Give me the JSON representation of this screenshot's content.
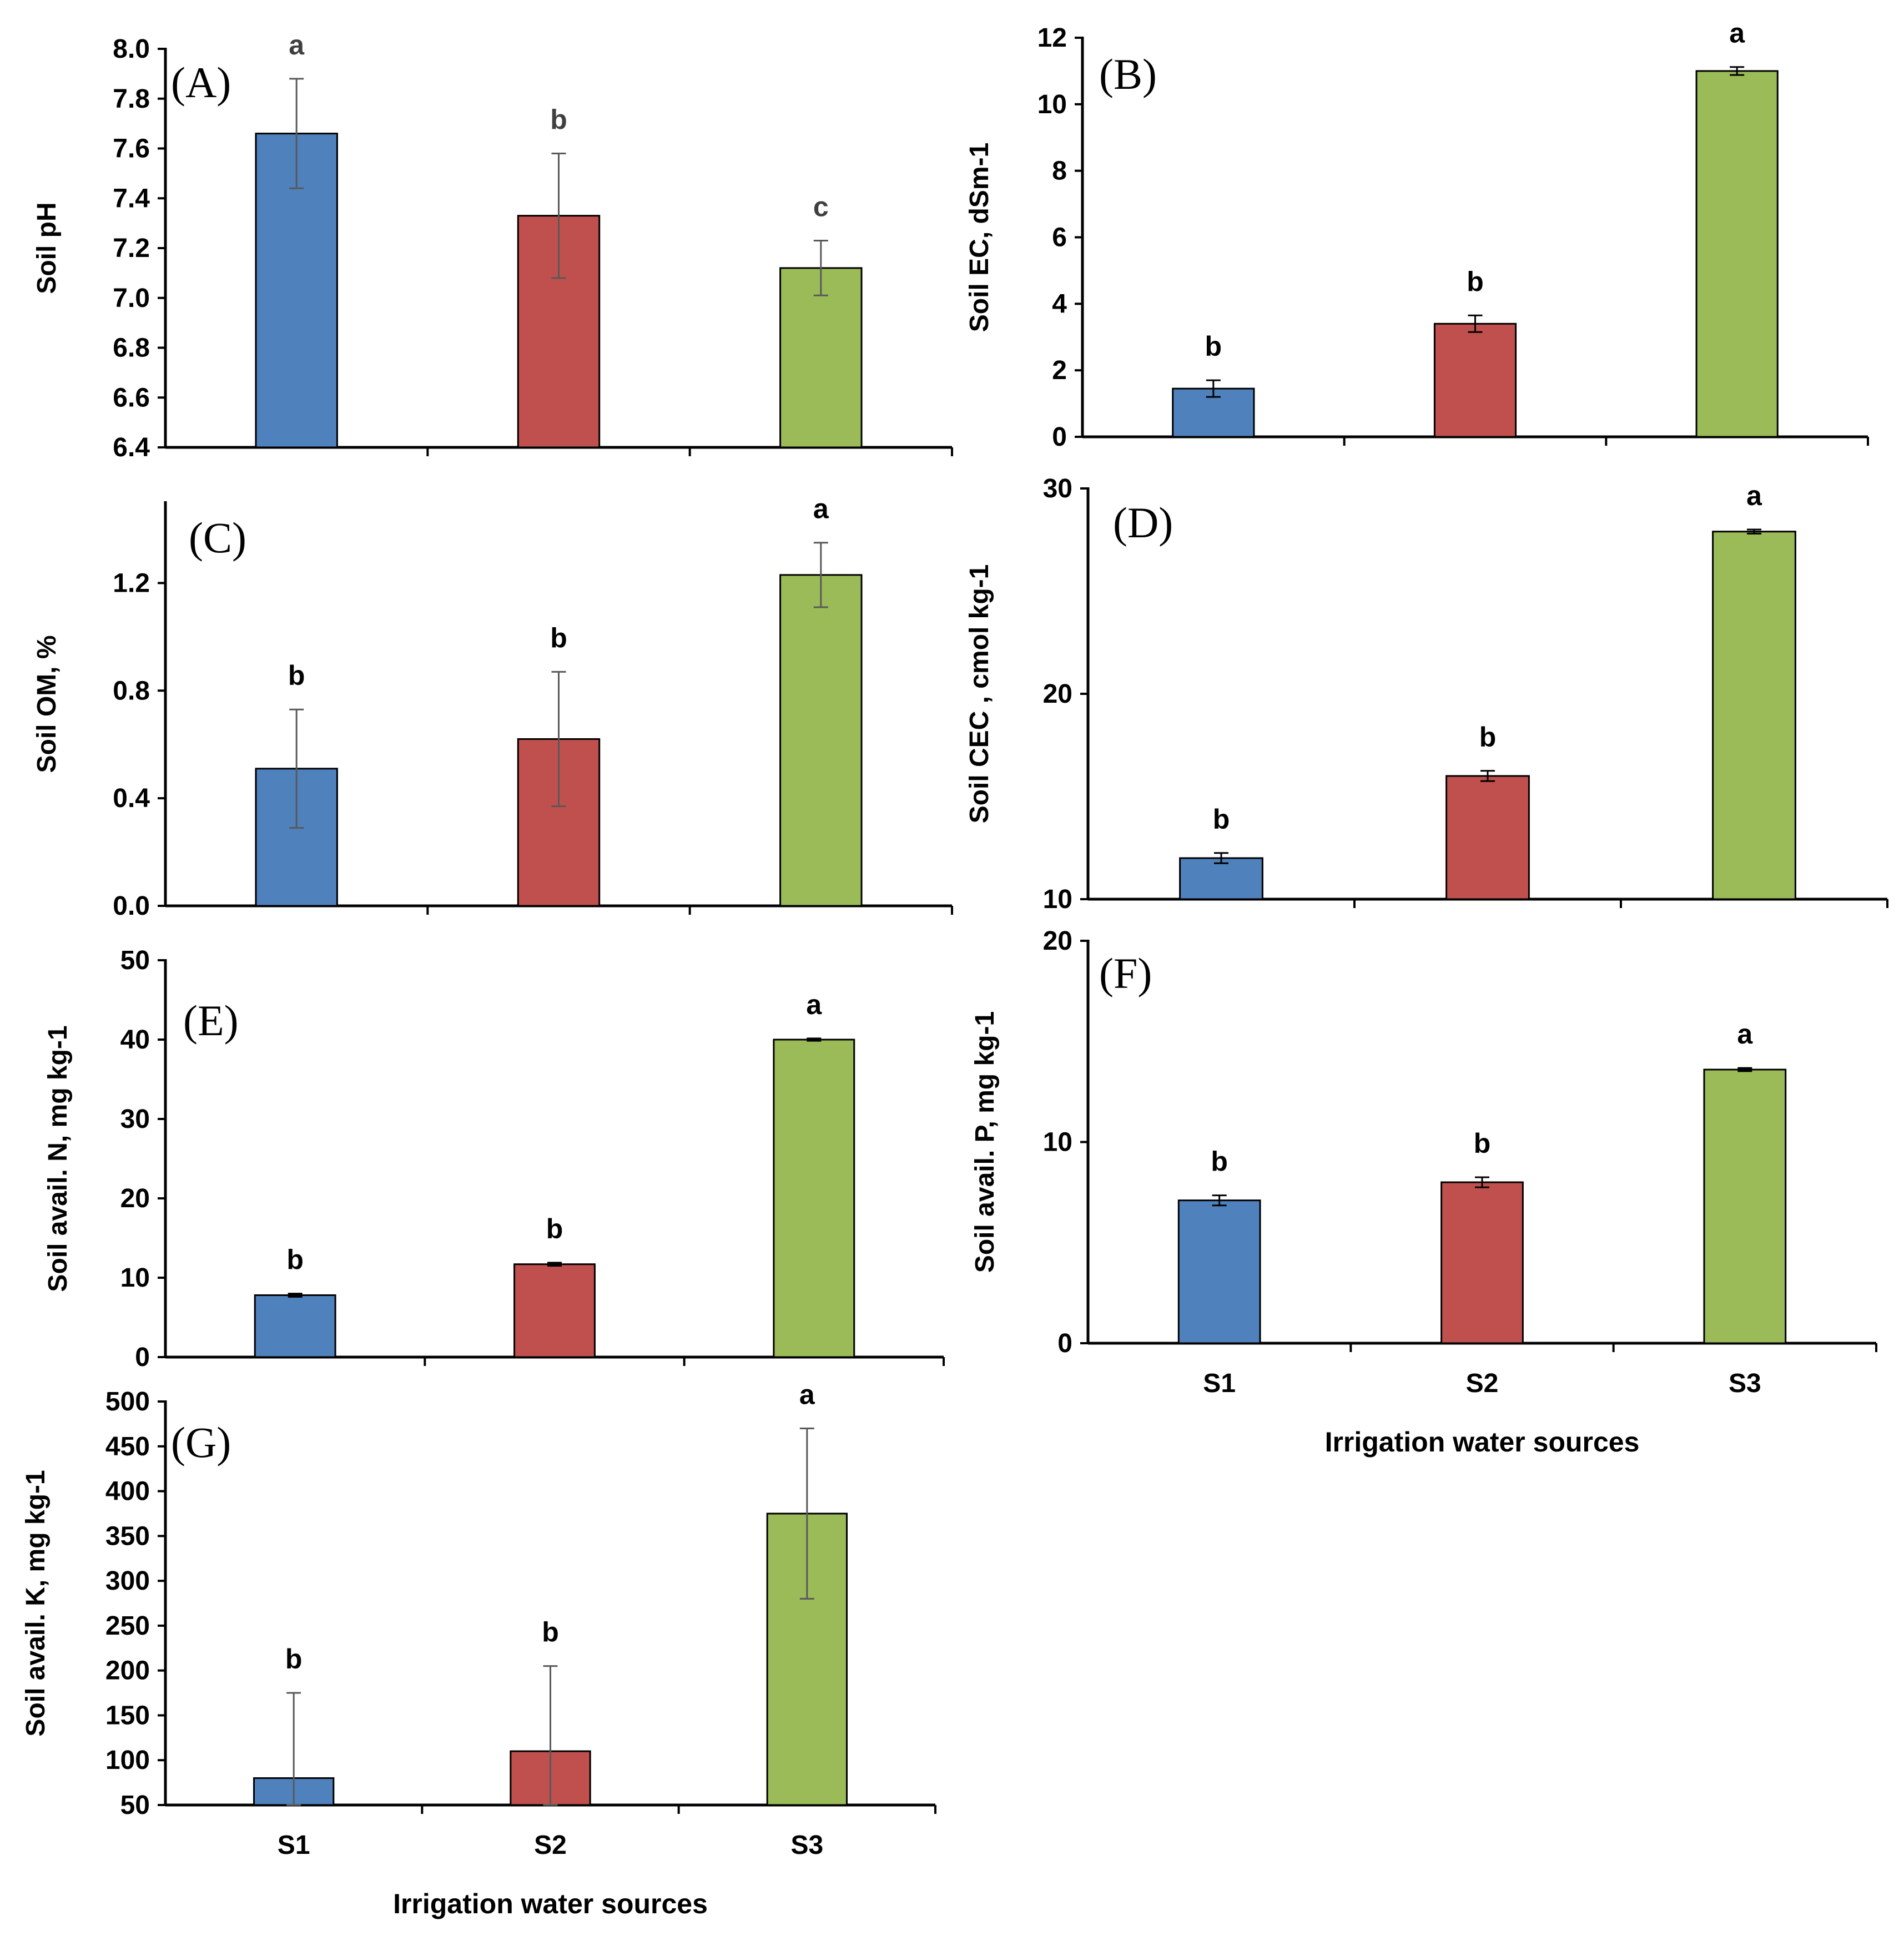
{
  "colors": {
    "S1": "#4F81BD",
    "S2": "#C0504D",
    "S3": "#9BBB59"
  },
  "chart_data": [
    {
      "panel": "(A)",
      "type": "bar",
      "categories": [
        "S1",
        "S2",
        "S3"
      ],
      "ylabel": "Soil pH",
      "xlabel": "",
      "ylim": [
        6.4,
        8.0
      ],
      "yticks": [
        "6.4",
        "6.6",
        "6.8",
        "7.0",
        "7.2",
        "7.4",
        "7.6",
        "7.8",
        "8.0"
      ],
      "show_categories": false,
      "values": [
        7.66,
        7.33,
        7.12
      ],
      "errors": [
        0.22,
        0.25,
        0.11
      ],
      "letters": [
        "a",
        "b",
        "c"
      ]
    },
    {
      "panel": "(B)",
      "type": "bar",
      "categories": [
        "S1",
        "S2",
        "S3"
      ],
      "ylabel": "Soil EC, dSm-1",
      "xlabel": "",
      "ylim": [
        0,
        12
      ],
      "yticks": [
        "0",
        "2",
        "4",
        "6",
        "8",
        "10",
        "12"
      ],
      "show_categories": false,
      "values": [
        1.45,
        3.4,
        11.0
      ],
      "errors": [
        0.25,
        0.25,
        0.12
      ],
      "letters": [
        "b",
        "b",
        "a"
      ]
    },
    {
      "panel": "(C)",
      "type": "bar",
      "categories": [
        "S1",
        "S2",
        "S3"
      ],
      "ylabel": "Soil OM, %",
      "xlabel": "",
      "ylim": [
        0,
        1.5
      ],
      "yticks": [
        "0.0",
        "0.4",
        "0.8",
        "1.2"
      ],
      "show_categories": false,
      "values": [
        0.51,
        0.62,
        1.23
      ],
      "errors": [
        0.22,
        0.25,
        0.12
      ],
      "letters": [
        "b",
        "b",
        "a"
      ]
    },
    {
      "panel": "(D)",
      "type": "bar",
      "categories": [
        "S1",
        "S2",
        "S3"
      ],
      "ylabel": "Soil CEC , cmol kg-1",
      "xlabel": "",
      "ylim": [
        10,
        30
      ],
      "yticks": [
        "10",
        "20",
        "30"
      ],
      "show_categories": false,
      "values": [
        12.0,
        16.0,
        27.9
      ],
      "errors": [
        0.25,
        0.25,
        0.1
      ],
      "letters": [
        "b",
        "b",
        "a"
      ]
    },
    {
      "panel": "(E)",
      "type": "bar",
      "categories": [
        "S1",
        "S2",
        "S3"
      ],
      "ylabel": "Soil avail. N, mg kg-1",
      "xlabel": "",
      "ylim": [
        0,
        50
      ],
      "yticks": [
        "0",
        "10",
        "20",
        "30",
        "40",
        "50"
      ],
      "show_categories": false,
      "values": [
        7.8,
        11.7,
        40.0
      ],
      "errors": [
        0.2,
        0.2,
        0.15
      ],
      "letters": [
        "b",
        "b",
        "a"
      ]
    },
    {
      "panel": "(F)",
      "type": "bar",
      "categories": [
        "S1",
        "S2",
        "S3"
      ],
      "ylabel": "Soil avail. P, mg kg-1",
      "xlabel": "Irrigation water sources",
      "ylim": [
        0,
        20
      ],
      "yticks": [
        "0",
        "10",
        "20"
      ],
      "show_categories": true,
      "values": [
        7.1,
        8.0,
        13.6
      ],
      "errors": [
        0.25,
        0.25,
        0.08
      ],
      "letters": [
        "b",
        "b",
        "a"
      ]
    },
    {
      "panel": "(G)",
      "type": "bar",
      "categories": [
        "S1",
        "S2",
        "S3"
      ],
      "ylabel": "Soil avail. K, mg kg-1",
      "xlabel": "Irrigation water sources",
      "ylim": [
        50,
        500
      ],
      "yticks": [
        "50",
        "100",
        "150",
        "200",
        "250",
        "300",
        "350",
        "400",
        "450",
        "500"
      ],
      "show_categories": true,
      "values": [
        80,
        110,
        375
      ],
      "errors": [
        95,
        95,
        95
      ],
      "letters": [
        "b",
        "b",
        "a"
      ]
    }
  ]
}
